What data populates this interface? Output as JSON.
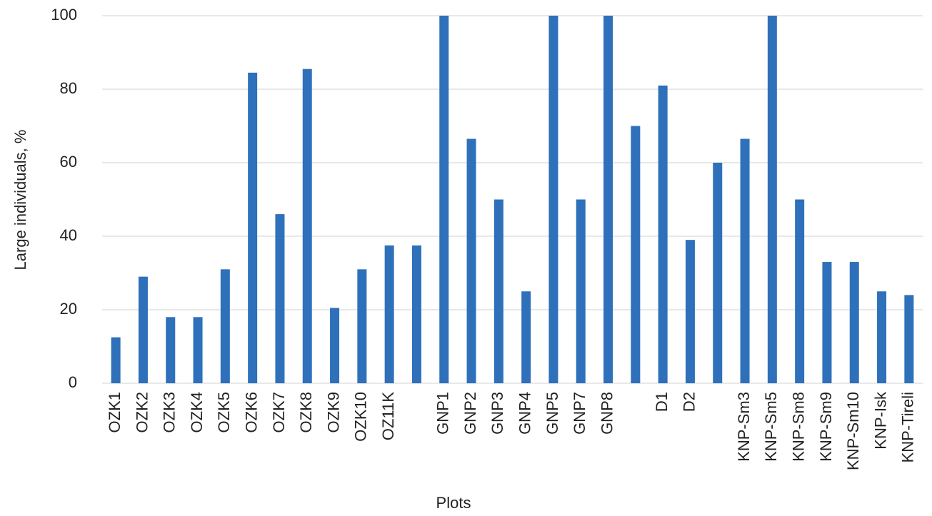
{
  "chart_data": {
    "type": "bar",
    "y_label": "Large individuals, %",
    "x_label": "Plots",
    "categories": [
      "OZK1",
      "OZK2",
      "OZK3",
      "OZK4",
      "OZK5",
      "OZK6",
      "OZK7",
      "OZK8",
      "OZK9",
      "OZK10",
      "OZ11K",
      null,
      "GNP1",
      "GNP2",
      "GNP3",
      "GNP4",
      "GNP5",
      "GNP7",
      "GNP8",
      null,
      "D1",
      "D2",
      null,
      "KNP-Sm3",
      "KNP-Sm5",
      "KNP-Sm8",
      "KNP-Sm9",
      "KNP-Sm10",
      "KNP-Isk",
      "KNP-Tireli"
    ],
    "values": [
      12.5,
      29,
      18,
      18,
      31,
      84.5,
      46,
      85.5,
      20.5,
      31,
      37.5,
      37.5,
      100,
      66.5,
      50,
      25,
      100,
      50,
      100,
      70,
      81,
      39,
      60,
      66.5,
      100,
      50,
      33,
      33,
      25,
      24
    ],
    "color": "#2e70ba",
    "ylim": [
      0,
      100
    ],
    "yticks": [
      0,
      20,
      40,
      60,
      80,
      100
    ],
    "grid": true
  }
}
